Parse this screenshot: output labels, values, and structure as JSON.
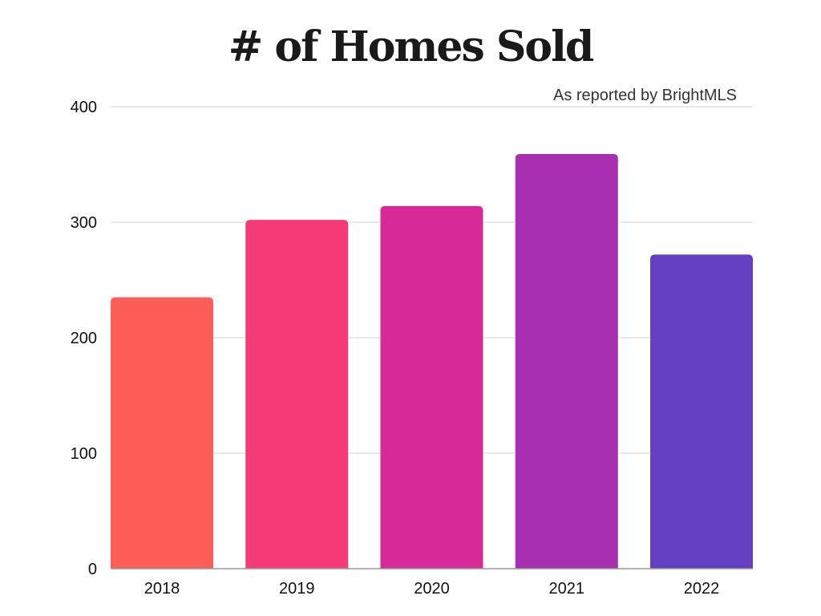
{
  "chart_data": {
    "type": "bar",
    "title": "# of Homes Sold",
    "subtitle": "As reported by BrightMLS",
    "xlabel": "",
    "ylabel": "",
    "categories": [
      "2018",
      "2019",
      "2020",
      "2021",
      "2022"
    ],
    "values": [
      235,
      302,
      314,
      359,
      272
    ],
    "colors": [
      "#fe5e57",
      "#f43b78",
      "#d72a98",
      "#a82eb2",
      "#6440c0"
    ],
    "ylim": [
      0,
      400
    ],
    "yticks": [
      0,
      100,
      200,
      300,
      400
    ],
    "grid": true,
    "legend": "none"
  }
}
